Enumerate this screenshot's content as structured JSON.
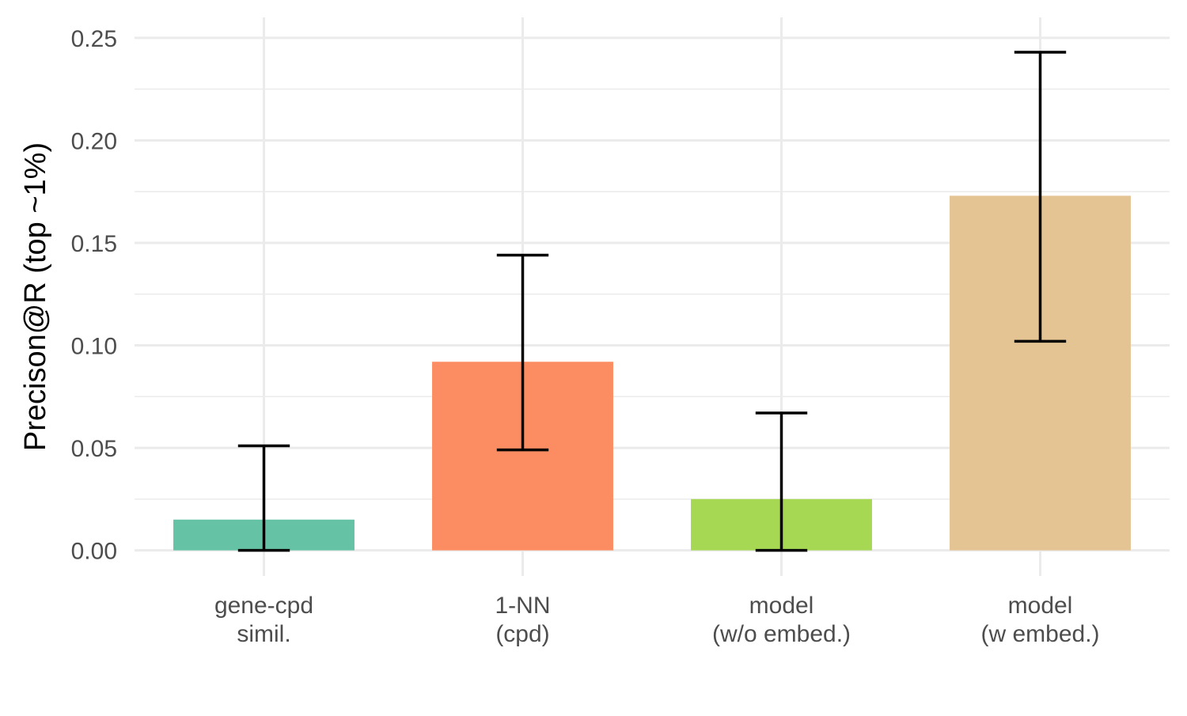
{
  "chart_data": {
    "type": "bar",
    "title": "",
    "xlabel": "",
    "ylabel": "Precison@R (top ~1%)",
    "ylim": [
      -0.0125,
      0.26
    ],
    "yticks": [
      0.0,
      0.05,
      0.1,
      0.15,
      0.2,
      0.25
    ],
    "ytick_labels": [
      "0.00",
      "0.05",
      "0.10",
      "0.15",
      "0.20",
      "0.25"
    ],
    "grid": true,
    "legend": "none",
    "categories": [
      {
        "lines": [
          "gene-cpd",
          "simil."
        ]
      },
      {
        "lines": [
          "1-NN",
          "(cpd)"
        ]
      },
      {
        "lines": [
          "model",
          "(w/o embed.)"
        ]
      },
      {
        "lines": [
          "model",
          "(w embed.)"
        ]
      }
    ],
    "values": [
      0.015,
      0.092,
      0.025,
      0.173
    ],
    "error_low": [
      0.0,
      0.049,
      0.0,
      0.102
    ],
    "error_high": [
      0.051,
      0.144,
      0.067,
      0.243
    ],
    "colors": [
      "#66c2a5",
      "#fc8d62",
      "#a6d854",
      "#e5c494"
    ]
  }
}
